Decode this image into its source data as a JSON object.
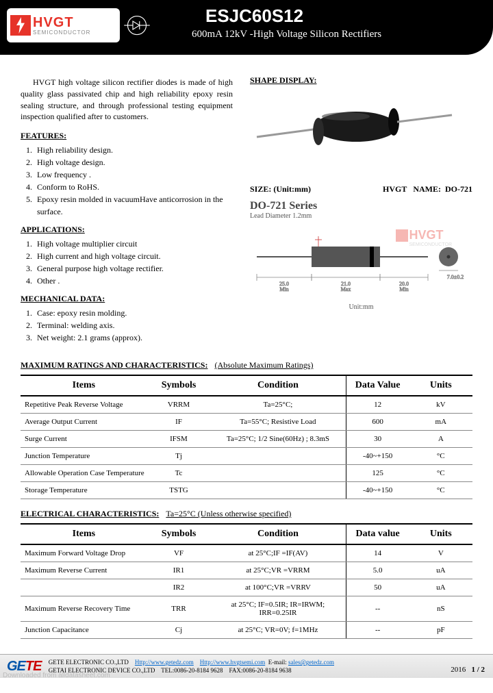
{
  "header": {
    "logo_name": "HVGT",
    "logo_sub": "SEMICONDUCTOR",
    "part_number": "ESJC60S12",
    "subtitle": "600mA 12kV -High Voltage Silicon Rectifiers"
  },
  "intro": "HVGT high voltage silicon rectifier diodes is made of high quality glass passivated chip and high reliability epoxy resin sealing structure, and through professional testing equipment inspection qualified after to customers.",
  "features": {
    "heading": "FEATURES:",
    "items": [
      "High reliability design.",
      "High voltage design.",
      "Low frequency .",
      "Conform to RoHS.",
      "Epoxy resin molded in vacuumHave anticorrosion in the surface."
    ]
  },
  "applications": {
    "heading": "APPLICATIONS:",
    "items": [
      "High voltage multiplier circuit",
      "High current and high voltage circuit.",
      "General purpose high voltage rectifier.",
      "Other ."
    ]
  },
  "mechanical": {
    "heading": "MECHANICAL DATA:",
    "items": [
      "Case: epoxy resin molding.",
      "Terminal: welding axis.",
      "Net weight: 2.1 grams (approx)."
    ]
  },
  "shape": {
    "heading": "SHAPE DISPLAY:",
    "size_label": "SIZE: (Unit:mm)",
    "brand": "HVGT",
    "name_label": "NAME:",
    "package": "DO-721",
    "series_title": "DO-721 Series",
    "lead": "Lead Diameter 1.2mm",
    "unit_label": "Unit:mm",
    "dims": {
      "lead_left": "25.0",
      "body": "21.0",
      "lead_right": "20.0",
      "dia": "7.0±0.2"
    },
    "min_label": "Min"
  },
  "max_ratings": {
    "heading": "MAXIMUM RATINGS AND CHARACTERISTICS:",
    "cond": "(Absolute Maximum Ratings)",
    "columns": [
      "Items",
      "Symbols",
      "Condition",
      "Data Value",
      "Units"
    ],
    "rows": [
      [
        "Repetitive Peak Reverse Voltage",
        "VRRM",
        "Ta=25°C;",
        "12",
        "kV"
      ],
      [
        "Average Output Current",
        "IF",
        "Ta=55°C; Resistive Load",
        "600",
        "mA"
      ],
      [
        "Surge Current",
        "IFSM",
        "Ta=25°C; 1/2 Sine(60Hz) ; 8.3mS",
        "30",
        "A"
      ],
      [
        "Junction Temperature",
        "Tj",
        "",
        "-40~+150",
        "°C"
      ],
      [
        "Allowable Operation Case Temperature",
        "Tc",
        "",
        "125",
        "°C"
      ],
      [
        "Storage Temperature",
        "TSTG",
        "",
        "-40~+150",
        "°C"
      ]
    ]
  },
  "elec": {
    "heading": "ELECTRICAL CHARACTERISTICS:",
    "cond": "Ta=25°C    (Unless otherwise specified)",
    "columns": [
      "Items",
      "Symbols",
      "Condition",
      "Data value",
      "Units"
    ],
    "rows": [
      [
        "Maximum Forward Voltage Drop",
        "VF",
        "at 25°C;IF =IF(AV)",
        "14",
        "V"
      ],
      [
        "",
        "IR1",
        "at 25°C;VR =VRRM",
        "5.0",
        "uA"
      ],
      [
        "Maximum Reverse Current",
        "",
        "",
        "",
        ""
      ],
      [
        "",
        "IR2",
        "at 100°C;VR =VRRV",
        "50",
        "uA"
      ],
      [
        "Maximum Reverse Recovery Time",
        "TRR",
        "at 25°C; IF=0.5IR; IR=IRWM; IRR=0.25IR",
        "--",
        "nS"
      ],
      [
        "Junction Capacitance",
        "Cj",
        "at 25°C; VR=0V; f=1MHz",
        "--",
        "pF"
      ]
    ]
  },
  "footer": {
    "company1": "GETE ELECTRONIC CO.,LTD",
    "url1": "Http://www.getedz.com",
    "url2": "Http://www.hvgtsemi.com",
    "email_label": "E-mail:",
    "email": "sales@getedz.com",
    "company2": "GETAI ELECTRONIC DEVICE CO.,LTD",
    "tel": "TEL:0086-20-8184 9628",
    "fax": "FAX:0086-20-8184 9638",
    "year": "2016",
    "page": "1 / 2",
    "watermark": "Downloaded from alldatasheet.com"
  }
}
